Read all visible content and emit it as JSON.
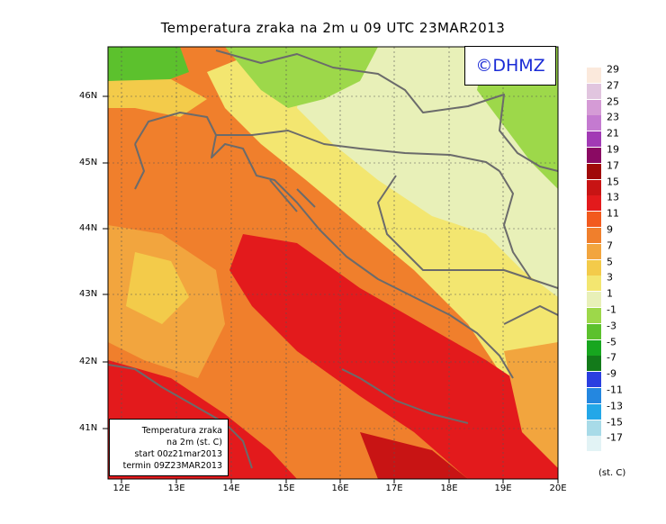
{
  "title": "Temperatura zraka na 2m u 09 UTC 23MAR2013",
  "brand": "©DHMZ",
  "info": {
    "line1": "Temperatura zraka",
    "line2": "na 2m (st. C)",
    "line3": "start 00z21mar2013",
    "line4": "termin 09Z23MAR2013"
  },
  "lat_labels": [
    "46N",
    "45N",
    "44N",
    "43N",
    "42N",
    "41N"
  ],
  "lon_labels": [
    "12E",
    "13E",
    "14E",
    "15E",
    "16E",
    "17E",
    "18E",
    "19E",
    "20E"
  ],
  "legend": {
    "unit": "(st. C)",
    "levels": [
      "29",
      "27",
      "25",
      "23",
      "21",
      "19",
      "17",
      "15",
      "13",
      "11",
      "9",
      "7",
      "5",
      "3",
      "1",
      "-1",
      "-3",
      "-5",
      "-7",
      "-9",
      "-11",
      "-13",
      "-15",
      "-17"
    ],
    "colors": [
      "#fbe9dc",
      "#e1c5df",
      "#d59bd6",
      "#c47ad0",
      "#a23ab5",
      "#8a0a63",
      "#a00a0a",
      "#c81414",
      "#e31a1c",
      "#f25a1e",
      "#f07f2c",
      "#f2a53e",
      "#f3cb4a",
      "#f3e670",
      "#e8f0b8",
      "#9dd84a",
      "#5cc12d",
      "#17a61f",
      "#137a1a",
      "#2a3fe0",
      "#2487e0",
      "#23a7e8",
      "#a8dbe8",
      "#e2f3f5"
    ]
  }
}
